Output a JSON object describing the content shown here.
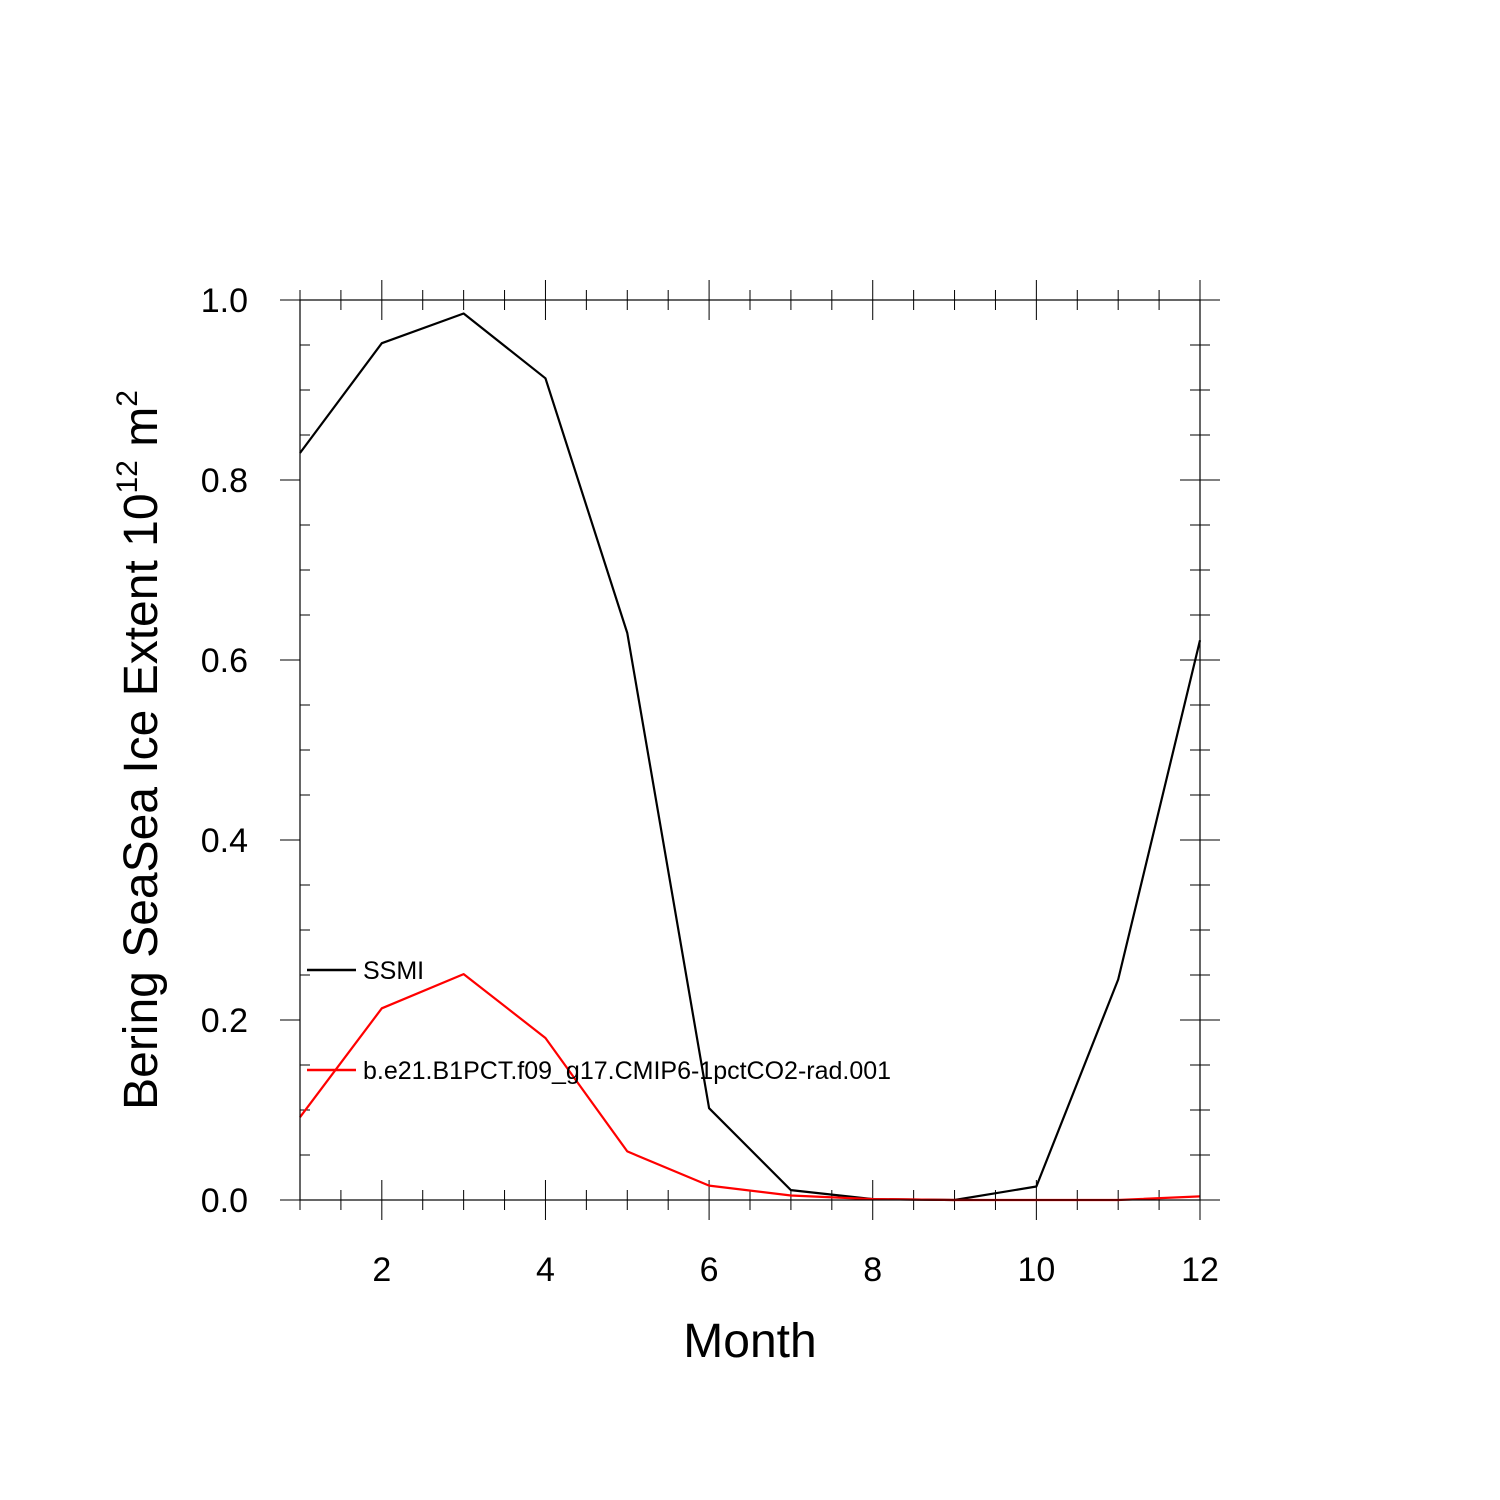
{
  "chart_data": {
    "type": "line",
    "title": "",
    "xlabel": "Month",
    "ylabel": {
      "main": "Bering SeaSea Ice Extent 10",
      "exponent": "12",
      "unit": " m",
      "unit_exponent": "2"
    },
    "xlim": [
      1,
      12
    ],
    "ylim": [
      0,
      1
    ],
    "x_ticks": [
      2,
      4,
      6,
      8,
      10,
      12
    ],
    "x_tick_labels": [
      "2",
      "4",
      "6",
      "8",
      "10",
      "12"
    ],
    "y_ticks": [
      0,
      0.2,
      0.4,
      0.6,
      0.8,
      1.0
    ],
    "y_tick_labels": [
      "0.0",
      "0.2",
      "0.4",
      "0.6",
      "0.8",
      "1.0"
    ],
    "x": [
      1,
      2,
      3,
      4,
      5,
      6,
      7,
      8,
      9,
      10,
      11,
      12
    ],
    "grid": false,
    "legend_placement": "lower-left",
    "series": [
      {
        "name": "SSMI",
        "color": "#000000",
        "values": [
          0.83,
          0.952,
          0.985,
          0.913,
          0.63,
          0.102,
          0.011,
          0.001,
          0.0,
          0.015,
          0.245,
          0.622
        ]
      },
      {
        "name": "b.e21.B1PCT.f09_g17.CMIP6-1pctCO2-rad.001",
        "color": "#ff0000",
        "values": [
          0.092,
          0.213,
          0.251,
          0.18,
          0.054,
          0.016,
          0.005,
          0.001,
          0.0,
          0.0,
          0.0,
          0.004
        ]
      }
    ]
  }
}
